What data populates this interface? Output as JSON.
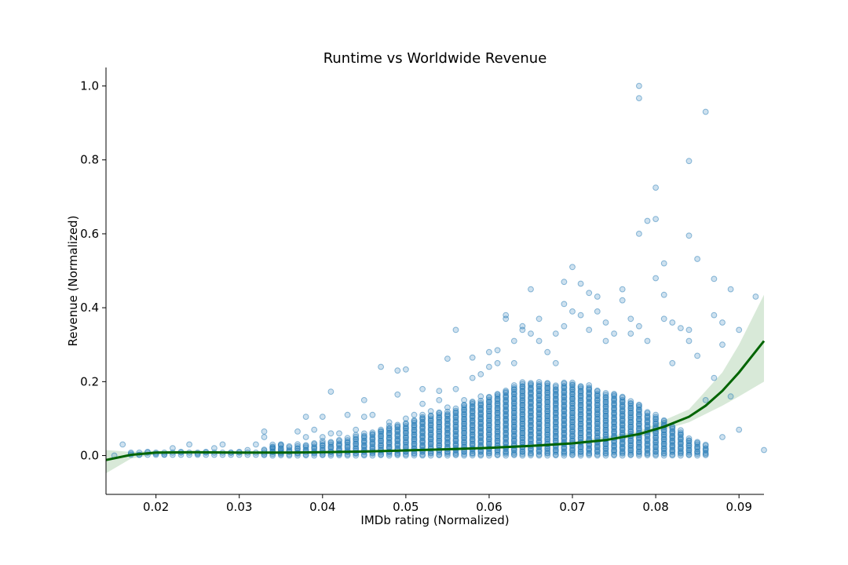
{
  "chart_data": {
    "type": "scatter",
    "title": "Runtime vs Worldwide Revenue",
    "xlabel": "IMDb rating (Normalized)",
    "ylabel": "Revenue (Normalized)",
    "xlim": [
      0.014,
      0.093
    ],
    "ylim": [
      -0.105,
      1.05
    ],
    "x_ticks": [
      0.02,
      0.03,
      0.04,
      0.05,
      0.06,
      0.07,
      0.08,
      0.09
    ],
    "x_tick_labels": [
      "0.02",
      "0.03",
      "0.04",
      "0.05",
      "0.06",
      "0.07",
      "0.08",
      "0.09"
    ],
    "y_ticks": [
      0.0,
      0.2,
      0.4,
      0.6,
      0.8,
      1.0
    ],
    "y_tick_labels": [
      "0.0",
      "0.2",
      "0.4",
      "0.6",
      "0.8",
      "1.0"
    ],
    "grid": false,
    "colors": {
      "points": "#1f77b4",
      "trend": "#006400",
      "band": "#90c090"
    },
    "series": [
      {
        "kind": "points",
        "points": [
          [
            0.015,
            0.0
          ],
          [
            0.016,
            0.03
          ],
          [
            0.017,
            0.005
          ],
          [
            0.018,
            0.002
          ],
          [
            0.019,
            0.01
          ],
          [
            0.02,
            0.005
          ],
          [
            0.021,
            0.003
          ],
          [
            0.022,
            0.02
          ],
          [
            0.023,
            0.01
          ],
          [
            0.024,
            0.03
          ],
          [
            0.025,
            0.005
          ],
          [
            0.026,
            0.01
          ],
          [
            0.027,
            0.02
          ],
          [
            0.028,
            0.03
          ],
          [
            0.029,
            0.008
          ],
          [
            0.03,
            0.01
          ],
          [
            0.031,
            0.015
          ],
          [
            0.032,
            0.03
          ],
          [
            0.033,
            0.065
          ],
          [
            0.033,
            0.05
          ],
          [
            0.034,
            0.02
          ],
          [
            0.035,
            0.03
          ],
          [
            0.035,
            0.01
          ],
          [
            0.036,
            0.025
          ],
          [
            0.037,
            0.065
          ],
          [
            0.038,
            0.105
          ],
          [
            0.038,
            0.05
          ],
          [
            0.039,
            0.07
          ],
          [
            0.04,
            0.105
          ],
          [
            0.04,
            0.05
          ],
          [
            0.041,
            0.173
          ],
          [
            0.041,
            0.06
          ],
          [
            0.042,
            0.06
          ],
          [
            0.043,
            0.11
          ],
          [
            0.044,
            0.07
          ],
          [
            0.045,
            0.15
          ],
          [
            0.045,
            0.105
          ],
          [
            0.046,
            0.11
          ],
          [
            0.047,
            0.24
          ],
          [
            0.047,
            0.07
          ],
          [
            0.048,
            0.09
          ],
          [
            0.049,
            0.23
          ],
          [
            0.049,
            0.165
          ],
          [
            0.05,
            0.233
          ],
          [
            0.05,
            0.1
          ],
          [
            0.051,
            0.11
          ],
          [
            0.052,
            0.18
          ],
          [
            0.052,
            0.14
          ],
          [
            0.053,
            0.12
          ],
          [
            0.054,
            0.175
          ],
          [
            0.054,
            0.15
          ],
          [
            0.055,
            0.262
          ],
          [
            0.055,
            0.13
          ],
          [
            0.056,
            0.34
          ],
          [
            0.056,
            0.18
          ],
          [
            0.057,
            0.15
          ],
          [
            0.058,
            0.265
          ],
          [
            0.058,
            0.21
          ],
          [
            0.059,
            0.16
          ],
          [
            0.059,
            0.22
          ],
          [
            0.06,
            0.28
          ],
          [
            0.06,
            0.24
          ],
          [
            0.061,
            0.285
          ],
          [
            0.061,
            0.25
          ],
          [
            0.062,
            0.38
          ],
          [
            0.062,
            0.37
          ],
          [
            0.063,
            0.31
          ],
          [
            0.063,
            0.25
          ],
          [
            0.064,
            0.35
          ],
          [
            0.064,
            0.34
          ],
          [
            0.065,
            0.45
          ],
          [
            0.065,
            0.33
          ],
          [
            0.066,
            0.37
          ],
          [
            0.066,
            0.31
          ],
          [
            0.067,
            0.28
          ],
          [
            0.068,
            0.33
          ],
          [
            0.068,
            0.25
          ],
          [
            0.069,
            0.47
          ],
          [
            0.069,
            0.41
          ],
          [
            0.069,
            0.35
          ],
          [
            0.07,
            0.51
          ],
          [
            0.07,
            0.39
          ],
          [
            0.071,
            0.465
          ],
          [
            0.071,
            0.38
          ],
          [
            0.072,
            0.44
          ],
          [
            0.072,
            0.34
          ],
          [
            0.073,
            0.43
          ],
          [
            0.073,
            0.39
          ],
          [
            0.074,
            0.36
          ],
          [
            0.074,
            0.31
          ],
          [
            0.075,
            0.33
          ],
          [
            0.076,
            0.45
          ],
          [
            0.076,
            0.42
          ],
          [
            0.077,
            0.33
          ],
          [
            0.077,
            0.37
          ],
          [
            0.078,
            1.0
          ],
          [
            0.078,
            0.967
          ],
          [
            0.078,
            0.6
          ],
          [
            0.078,
            0.35
          ],
          [
            0.079,
            0.635
          ],
          [
            0.079,
            0.31
          ],
          [
            0.08,
            0.725
          ],
          [
            0.08,
            0.64
          ],
          [
            0.08,
            0.48
          ],
          [
            0.081,
            0.52
          ],
          [
            0.081,
            0.435
          ],
          [
            0.081,
            0.37
          ],
          [
            0.082,
            0.36
          ],
          [
            0.082,
            0.25
          ],
          [
            0.083,
            0.345
          ],
          [
            0.084,
            0.797
          ],
          [
            0.084,
            0.595
          ],
          [
            0.084,
            0.34
          ],
          [
            0.084,
            0.31
          ],
          [
            0.085,
            0.532
          ],
          [
            0.085,
            0.27
          ],
          [
            0.086,
            0.93
          ],
          [
            0.086,
            0.15
          ],
          [
            0.087,
            0.478
          ],
          [
            0.087,
            0.38
          ],
          [
            0.088,
            0.36
          ],
          [
            0.088,
            0.3
          ],
          [
            0.088,
            0.05
          ],
          [
            0.089,
            0.45
          ],
          [
            0.089,
            0.16
          ],
          [
            0.09,
            0.34
          ],
          [
            0.09,
            0.07
          ],
          [
            0.092,
            0.43
          ],
          [
            0.093,
            0.015
          ],
          [
            0.087,
            0.21
          ]
        ],
        "dense_columns": [
          [
            0.033,
            0.02
          ],
          [
            0.034,
            0.03
          ],
          [
            0.035,
            0.03
          ],
          [
            0.036,
            0.025
          ],
          [
            0.037,
            0.03
          ],
          [
            0.038,
            0.03
          ],
          [
            0.039,
            0.035
          ],
          [
            0.04,
            0.04
          ],
          [
            0.041,
            0.04
          ],
          [
            0.042,
            0.045
          ],
          [
            0.043,
            0.05
          ],
          [
            0.044,
            0.055
          ],
          [
            0.045,
            0.06
          ],
          [
            0.046,
            0.065
          ],
          [
            0.047,
            0.07
          ],
          [
            0.048,
            0.08
          ],
          [
            0.049,
            0.085
          ],
          [
            0.05,
            0.09
          ],
          [
            0.051,
            0.1
          ],
          [
            0.052,
            0.11
          ],
          [
            0.053,
            0.11
          ],
          [
            0.054,
            0.12
          ],
          [
            0.055,
            0.12
          ],
          [
            0.056,
            0.13
          ],
          [
            0.057,
            0.14
          ],
          [
            0.058,
            0.15
          ],
          [
            0.059,
            0.15
          ],
          [
            0.06,
            0.16
          ],
          [
            0.061,
            0.17
          ],
          [
            0.062,
            0.18
          ],
          [
            0.063,
            0.19
          ],
          [
            0.064,
            0.2
          ],
          [
            0.065,
            0.2
          ],
          [
            0.066,
            0.2
          ],
          [
            0.067,
            0.2
          ],
          [
            0.068,
            0.19
          ],
          [
            0.069,
            0.2
          ],
          [
            0.07,
            0.2
          ],
          [
            0.071,
            0.19
          ],
          [
            0.072,
            0.19
          ],
          [
            0.073,
            0.18
          ],
          [
            0.074,
            0.17
          ],
          [
            0.075,
            0.17
          ],
          [
            0.076,
            0.16
          ],
          [
            0.077,
            0.15
          ],
          [
            0.078,
            0.14
          ],
          [
            0.079,
            0.12
          ],
          [
            0.08,
            0.11
          ],
          [
            0.081,
            0.1
          ],
          [
            0.082,
            0.08
          ],
          [
            0.083,
            0.07
          ],
          [
            0.084,
            0.05
          ],
          [
            0.085,
            0.04
          ],
          [
            0.086,
            0.03
          ]
        ]
      },
      {
        "kind": "trend",
        "points": [
          [
            0.014,
            -0.012
          ],
          [
            0.017,
            0.002
          ],
          [
            0.02,
            0.008
          ],
          [
            0.025,
            0.009
          ],
          [
            0.03,
            0.008
          ],
          [
            0.035,
            0.008
          ],
          [
            0.04,
            0.009
          ],
          [
            0.045,
            0.011
          ],
          [
            0.05,
            0.014
          ],
          [
            0.055,
            0.017
          ],
          [
            0.06,
            0.021
          ],
          [
            0.065,
            0.026
          ],
          [
            0.07,
            0.033
          ],
          [
            0.074,
            0.042
          ],
          [
            0.078,
            0.058
          ],
          [
            0.081,
            0.078
          ],
          [
            0.084,
            0.105
          ],
          [
            0.086,
            0.135
          ],
          [
            0.088,
            0.175
          ],
          [
            0.09,
            0.225
          ],
          [
            0.093,
            0.31
          ]
        ],
        "band_upper": [
          [
            0.014,
            0.015
          ],
          [
            0.017,
            0.01
          ],
          [
            0.02,
            0.013
          ],
          [
            0.03,
            0.012
          ],
          [
            0.04,
            0.012
          ],
          [
            0.05,
            0.017
          ],
          [
            0.06,
            0.024
          ],
          [
            0.07,
            0.037
          ],
          [
            0.078,
            0.066
          ],
          [
            0.084,
            0.125
          ],
          [
            0.088,
            0.225
          ],
          [
            0.09,
            0.3
          ],
          [
            0.093,
            0.435
          ]
        ],
        "band_lower": [
          [
            0.014,
            -0.048
          ],
          [
            0.017,
            -0.008
          ],
          [
            0.02,
            0.003
          ],
          [
            0.03,
            0.004
          ],
          [
            0.04,
            0.006
          ],
          [
            0.05,
            0.011
          ],
          [
            0.06,
            0.018
          ],
          [
            0.07,
            0.029
          ],
          [
            0.078,
            0.05
          ],
          [
            0.084,
            0.09
          ],
          [
            0.088,
            0.135
          ],
          [
            0.09,
            0.16
          ],
          [
            0.093,
            0.2
          ]
        ]
      }
    ]
  }
}
